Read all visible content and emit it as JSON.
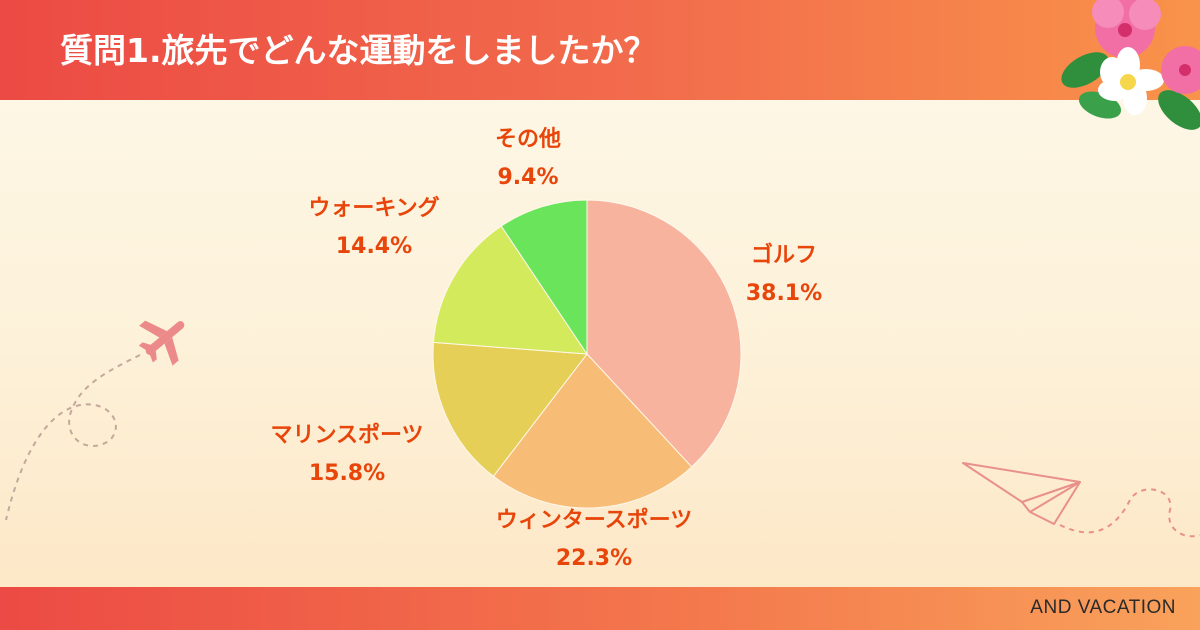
{
  "header": {
    "title": "質問1.旅先でどんな運動をしましたか？"
  },
  "footer": {
    "brand": "AND VACATION"
  },
  "colors": {
    "label": "#e8450a",
    "header_start": "#ec4a44",
    "header_end": "#f9934a"
  },
  "icons": [
    "airplane-icon",
    "paper-plane-icon",
    "hibiscus-flower-icon"
  ],
  "chart_data": {
    "type": "pie",
    "title": "",
    "slices": [
      {
        "label": "ゴルフ",
        "value": 38.1,
        "value_label": "38.1%",
        "color": "#f7b39e"
      },
      {
        "label": "ウィンタースポーツ",
        "value": 22.3,
        "value_label": "22.3%",
        "color": "#f7bd76"
      },
      {
        "label": "マリンスポーツ",
        "value": 15.8,
        "value_label": "15.8%",
        "color": "#e5cf57"
      },
      {
        "label": "ウォーキング",
        "value": 14.4,
        "value_label": "14.4%",
        "color": "#d3ea5c"
      },
      {
        "label": "その他",
        "value": 9.4,
        "value_label": "9.4%",
        "color": "#6ae45a"
      }
    ],
    "start": "12 o'clock, clockwise"
  }
}
